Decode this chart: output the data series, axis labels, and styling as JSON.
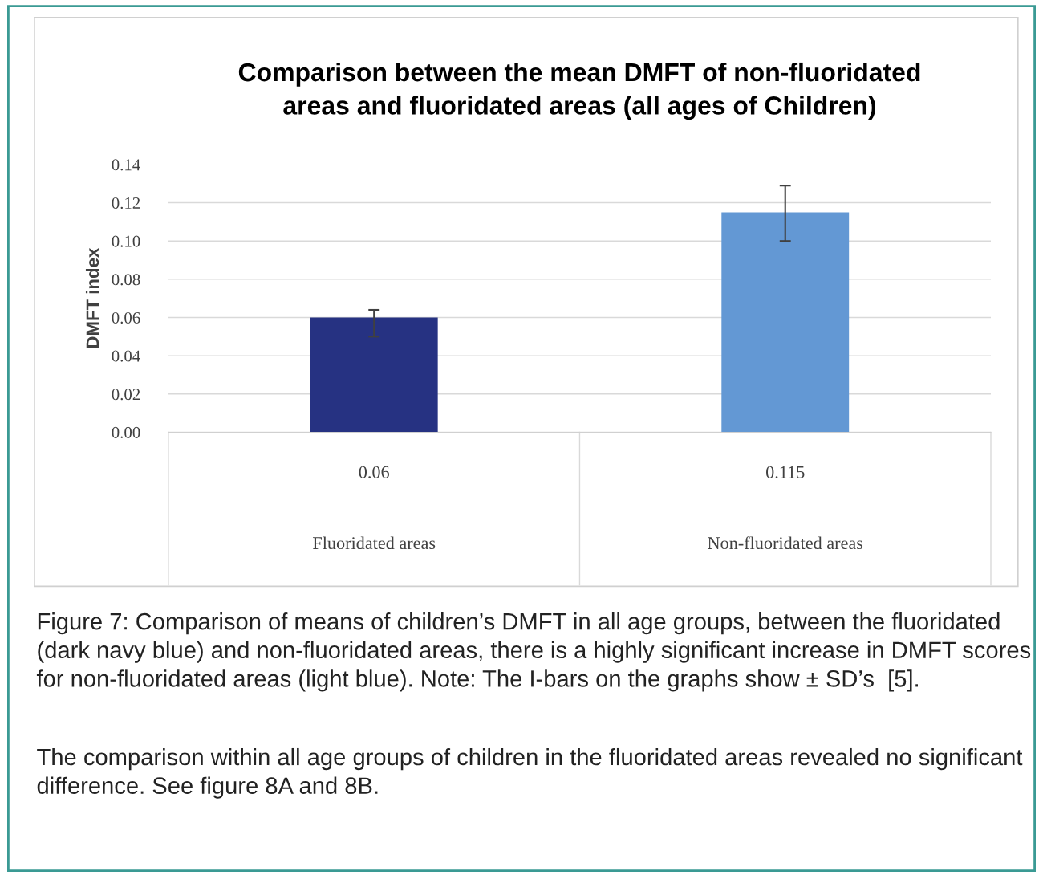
{
  "chart_data": {
    "type": "bar",
    "title": "Comparison between the mean DMFT of non-fluoridated\nareas and fluoridated areas (all ages of Children)",
    "ylabel": "DMFT index",
    "categories": [
      "Fluoridated areas",
      "Non-fluoridated areas"
    ],
    "values": [
      0.06,
      0.115
    ],
    "colors": [
      "#263282",
      "#6398d4"
    ],
    "errors": [
      [
        0.05,
        0.064
      ],
      [
        0.1,
        0.129
      ]
    ],
    "data_labels": true,
    "ylim": [
      0,
      0.14
    ],
    "yticks": [
      {
        "value": 0,
        "label": "0.00"
      },
      {
        "value": 0.02,
        "label": "0.02"
      },
      {
        "value": 0.04,
        "label": "0.04"
      },
      {
        "value": 0.06,
        "label": "0.06"
      },
      {
        "value": 0.08,
        "label": "0.08"
      },
      {
        "value": 0.1,
        "label": "0.10"
      },
      {
        "value": 0.12,
        "label": "0.12"
      },
      {
        "value": 0.14,
        "label": "0.14"
      }
    ],
    "grid": "y",
    "annotations": [
      "Figure 7: Comparison of means of children’s DMFT in all age groups, between the fluoridated (dark navy blue) and non-fluoridated areas, there is a highly significant increase in DMFT scores for non-fluoridated areas (light blue). Note: The I-bars on the graphs show ± SD’s  [5].",
      "The comparison within all age groups of children in the fluoridated areas revealed no significant difference. See figure 8A and 8B."
    ]
  }
}
